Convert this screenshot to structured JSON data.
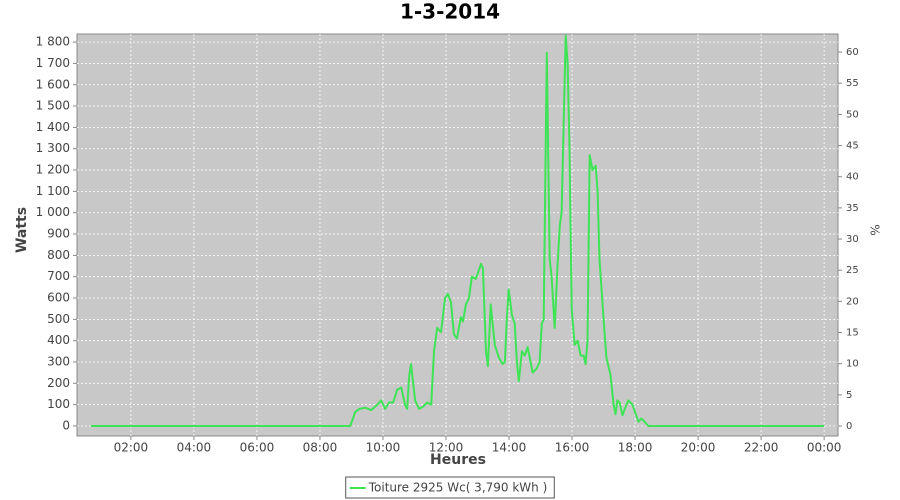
{
  "chart_data": {
    "type": "line",
    "title": "1-3-2014",
    "x_label": "Heures",
    "y_label": "Watts",
    "y2_label": "%",
    "x": [
      0.73,
      8.96,
      9.12,
      9.25,
      9.44,
      9.63,
      9.82,
      9.94,
      10.07,
      10.19,
      10.32,
      10.45,
      10.58,
      10.7,
      10.77,
      10.83,
      10.89,
      10.96,
      11.02,
      11.15,
      11.27,
      11.4,
      11.53,
      11.62,
      11.72,
      11.84,
      11.97,
      12.06,
      12.16,
      12.25,
      12.35,
      12.47,
      12.54,
      12.63,
      12.73,
      12.82,
      12.95,
      13.11,
      13.17,
      13.27,
      13.33,
      13.42,
      13.55,
      13.68,
      13.8,
      13.87,
      13.93,
      13.99,
      14.09,
      14.18,
      14.25,
      14.31,
      14.41,
      14.5,
      14.59,
      14.75,
      14.88,
      14.97,
      15.04,
      15.1,
      15.2,
      15.29,
      15.35,
      15.45,
      15.54,
      15.61,
      15.67,
      15.8,
      15.86,
      15.92,
      15.99,
      16.08,
      16.18,
      16.27,
      16.37,
      16.43,
      16.49,
      16.56,
      16.65,
      16.75,
      16.81,
      16.87,
      17.0,
      17.09,
      17.22,
      17.32,
      17.38,
      17.44,
      17.51,
      17.6,
      17.7,
      17.79,
      17.92,
      18.01,
      18.11,
      18.2,
      18.3,
      18.42,
      24.0
    ],
    "series": [
      {
        "name": "Toiture 2925 Wc( 3,790 kWh )",
        "color": "#3ee356",
        "values": [
          0,
          0,
          65,
          80,
          85,
          75,
          100,
          120,
          80,
          110,
          110,
          170,
          180,
          100,
          80,
          230,
          290,
          200,
          120,
          80,
          90,
          110,
          100,
          350,
          460,
          440,
          600,
          620,
          580,
          430,
          410,
          510,
          490,
          570,
          600,
          700,
          690,
          760,
          740,
          350,
          280,
          570,
          380,
          320,
          290,
          300,
          500,
          640,
          520,
          480,
          300,
          210,
          350,
          330,
          370,
          250,
          270,
          300,
          480,
          500,
          1750,
          780,
          700,
          460,
          750,
          940,
          1000,
          1830,
          1700,
          1300,
          550,
          380,
          400,
          330,
          330,
          290,
          400,
          1270,
          1200,
          1220,
          1100,
          780,
          500,
          320,
          240,
          100,
          55,
          120,
          110,
          50,
          90,
          120,
          100,
          60,
          20,
          35,
          20,
          0,
          0
        ]
      }
    ],
    "xlim": [
      0.29,
      24.44
    ],
    "xticks": [
      {
        "value": 2,
        "label": "02:00"
      },
      {
        "value": 4,
        "label": "04:00"
      },
      {
        "value": 6,
        "label": "06:00"
      },
      {
        "value": 8,
        "label": "08:00"
      },
      {
        "value": 10,
        "label": "10:00"
      },
      {
        "value": 12,
        "label": "12:00"
      },
      {
        "value": 14,
        "label": "14:00"
      },
      {
        "value": 16,
        "label": "16:00"
      },
      {
        "value": 18,
        "label": "18:00"
      },
      {
        "value": 20,
        "label": "20:00"
      },
      {
        "value": 22,
        "label": "22:00"
      },
      {
        "value": 24,
        "label": "00:00"
      }
    ],
    "ylim": [
      -47,
      1838
    ],
    "yticks": [
      0,
      100,
      200,
      300,
      400,
      500,
      600,
      700,
      800,
      900,
      {
        "value": 1000,
        "label": "1 000"
      },
      {
        "value": 1100,
        "label": "1 100"
      },
      {
        "value": 1200,
        "label": "1 200"
      },
      {
        "value": 1300,
        "label": "1 300"
      },
      {
        "value": 1400,
        "label": "1 400"
      },
      {
        "value": 1500,
        "label": "1 500"
      },
      {
        "value": 1600,
        "label": "1 600"
      },
      {
        "value": 1700,
        "label": "1 700"
      },
      {
        "value": 1800,
        "label": "1 800"
      }
    ],
    "y2lim": [
      -1.6,
      62.9
    ],
    "y2ticks": [
      0,
      5,
      10,
      15,
      20,
      25,
      30,
      35,
      40,
      45,
      50,
      55,
      60
    ],
    "grid": true,
    "plot_background": "#c8c8c8",
    "legend": "bottom"
  }
}
